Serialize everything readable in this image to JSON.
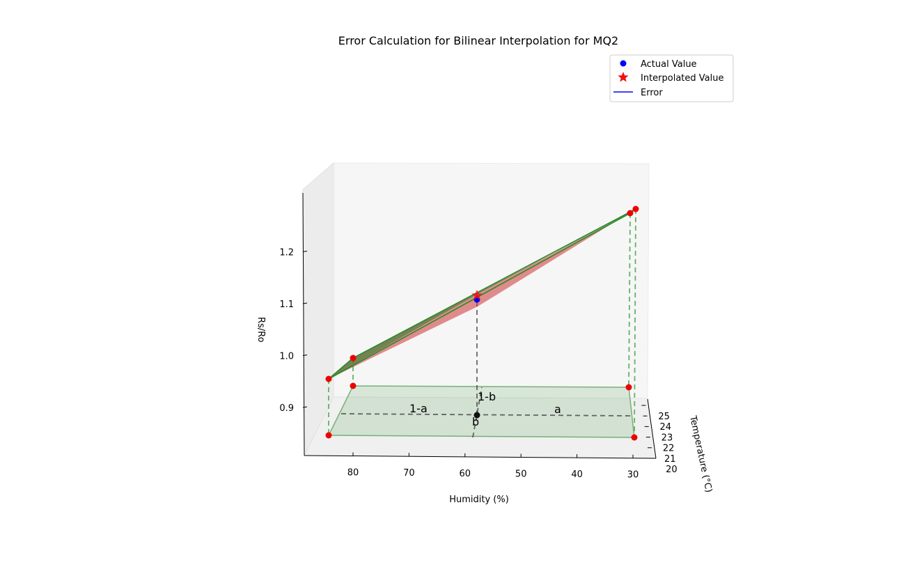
{
  "chart_data": {
    "type": "scatter",
    "projection": "3d",
    "title": "Error Calculation for Bilinear Interpolation for MQ2",
    "xlabel": "Humidity (%)",
    "ylabel": "Temperature (°C)",
    "zlabel": "Rs/Ro",
    "x_ticks": [
      "30",
      "40",
      "50",
      "60",
      "70",
      "80"
    ],
    "y_ticks": [
      "20",
      "21",
      "22",
      "23",
      "24",
      "25"
    ],
    "z_ticks": [
      "0.9",
      "1.0",
      "1.1",
      "1.2"
    ],
    "xlim": [
      25,
      87
    ],
    "ylim": [
      20,
      26
    ],
    "zlim": [
      0.83,
      1.3
    ],
    "legend_position": "top-right",
    "series": [
      {
        "name": "Actual Value",
        "type": "scatter",
        "color": "#0000ff",
        "marker": "circle",
        "points": [
          {
            "x": 58.5,
            "y": 23.5,
            "z": 1.1
          }
        ]
      },
      {
        "name": "Interpolated Value",
        "type": "scatter",
        "color": "#ff0000",
        "marker": "star",
        "points": [
          {
            "x": 58.5,
            "y": 23.5,
            "z": 1.107
          }
        ]
      },
      {
        "name": "Error",
        "type": "line",
        "color": "#0000ff"
      }
    ],
    "corner_points": [
      {
        "x": 85,
        "y": 20.5,
        "z": 0.96
      },
      {
        "x": 80,
        "y": 25.5,
        "z": 1.0
      },
      {
        "x": 30,
        "y": 20.5,
        "z": 1.27
      },
      {
        "x": 29,
        "y": 25.5,
        "z": 1.26
      }
    ],
    "annotations": [
      "1-a",
      "a",
      "1-b",
      "b"
    ]
  }
}
